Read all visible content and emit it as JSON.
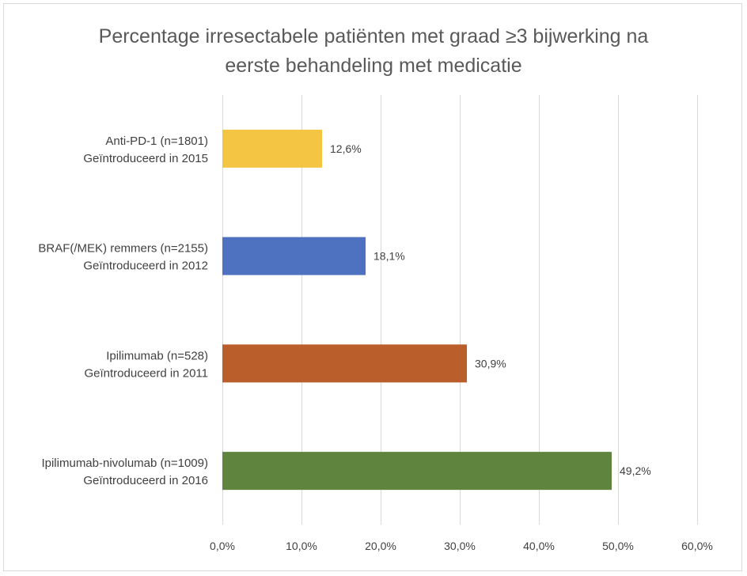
{
  "chart_data": {
    "type": "bar",
    "orientation": "horizontal",
    "title": "Percentage irresectabele patiënten met graad ≥3 bijwerking na eerste behandeling met medicatie",
    "title_lines": [
      "Percentage irresectabele patiënten met graad ≥3 bijwerking na",
      "eerste behandeling met medicatie"
    ],
    "categories": [
      {
        "lines": [
          "Anti-PD-1 (n=1801)",
          "Geïntroduceerd in 2015"
        ]
      },
      {
        "lines": [
          "BRAF(/MEK) remmers (n=2155)",
          "Geïntroduceerd in 2012"
        ]
      },
      {
        "lines": [
          "Ipilimumab (n=528)",
          "Geïntroduceerd in 2011"
        ]
      },
      {
        "lines": [
          "Ipilimumab-nivolumab (n=1009)",
          "Geïntroduceerd in 2016"
        ]
      }
    ],
    "values": [
      12.6,
      18.1,
      30.9,
      49.2
    ],
    "data_labels": [
      "12,6%",
      "18,1%",
      "30,9%",
      "49,2%"
    ],
    "colors": [
      "#F4C542",
      "#4F72C0",
      "#BA5E2B",
      "#5E843E"
    ],
    "xlim": [
      0,
      60
    ],
    "xticks": [
      0,
      10,
      20,
      30,
      40,
      50,
      60
    ],
    "xtick_labels": [
      "0,0%",
      "10,0%",
      "20,0%",
      "30,0%",
      "40,0%",
      "50,0%",
      "60,0%"
    ],
    "grid": true,
    "xlabel": "",
    "ylabel": "",
    "legend": "none"
  }
}
